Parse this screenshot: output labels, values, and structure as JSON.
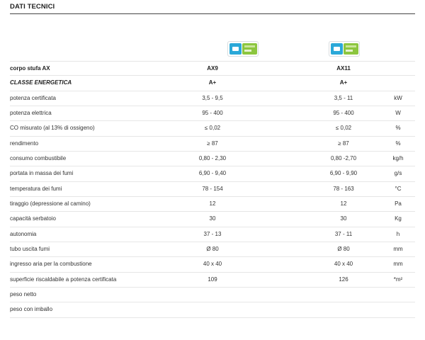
{
  "section": {
    "title": "DATI TECNICI"
  },
  "energy_labels": [
    {
      "model": "AX9",
      "icon": "energy-label-icon"
    },
    {
      "model": "AX11",
      "icon": "energy-label-icon"
    }
  ],
  "table": {
    "header": {
      "label": "corpo stufa AX",
      "ax9": "AX9",
      "ax11": "AX11",
      "unit": ""
    },
    "energy_class": {
      "label": "CLASSE ENERGETICA",
      "ax9": "A+",
      "ax11": "A+",
      "unit": ""
    },
    "rows": [
      {
        "label": "potenza certificata",
        "ax9": "3,5 - 9,5",
        "ax11": "3,5 - 11",
        "unit": "kW"
      },
      {
        "label": "potenza elettrica",
        "ax9": "95 - 400",
        "ax11": "95 - 400",
        "unit": "W"
      },
      {
        "label": "CO misurato (al 13% di ossigeno)",
        "ax9": "≤ 0,02",
        "ax11": "≤ 0,02",
        "unit": "%"
      },
      {
        "label": "rendimento",
        "ax9": "≥ 87",
        "ax11": "≥ 87",
        "unit": "%"
      },
      {
        "label": "consumo combustibile",
        "ax9": "0,80 - 2,30",
        "ax11": "0,80 -2,70",
        "unit": "kg/h"
      },
      {
        "label": "portata in massa dei fumi",
        "ax9": "6,90 - 9,40",
        "ax11": "6,90 - 9,90",
        "unit": "g/s"
      },
      {
        "label": "temperatura dei fumi",
        "ax9": "78 - 154",
        "ax11": "78 - 163",
        "unit": "°C"
      },
      {
        "label": "tiraggio (depressione al camino)",
        "ax9": "12",
        "ax11": "12",
        "unit": "Pa"
      },
      {
        "label": "capacità serbatoio",
        "ax9": "30",
        "ax11": "30",
        "unit": "Kg"
      },
      {
        "label": "autonomia",
        "ax9": "37 - 13",
        "ax11": "37 - 11",
        "unit": "h"
      },
      {
        "label": "tubo uscita fumi",
        "ax9": "Ø 80",
        "ax11": "Ø 80",
        "unit": "mm"
      },
      {
        "label": "ingresso aria per la combustione",
        "ax9": "40 x 40",
        "ax11": "40 x 40",
        "unit": "mm"
      },
      {
        "label": "superficie riscaldabile a potenza certificata",
        "ax9": "109",
        "ax11": "126",
        "unit": "*m²"
      },
      {
        "label": "peso netto",
        "ax9": "",
        "ax11": "",
        "unit": ""
      },
      {
        "label": "peso con imballo",
        "ax9": "",
        "ax11": "",
        "unit": ""
      }
    ]
  }
}
